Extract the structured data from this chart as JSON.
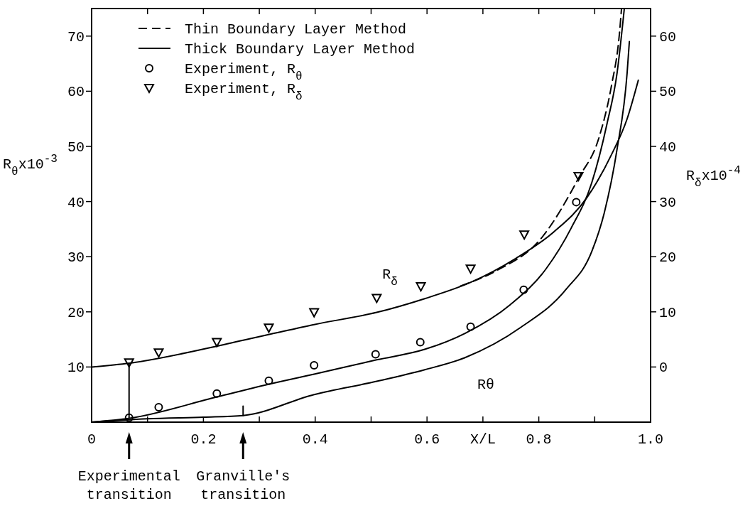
{
  "chart_data": {
    "type": "line",
    "xlabel": "X/L",
    "ylabel": "R$_{θ}$x10$^{-3}$",
    "y2label": "R$_{δ}$x10$^{-4}$",
    "xlim": [
      0,
      1
    ],
    "xticks": [
      0,
      {
        "value": 0.1,
        "label": null
      },
      0.2,
      {
        "value": 0.3,
        "label": null
      },
      0.4,
      {
        "value": 0.5,
        "label": null
      },
      0.6,
      {
        "value": 0.7,
        "label": null
      },
      0.8,
      {
        "value": 0.9,
        "label": null
      },
      {
        "value": 1,
        "label": "1.0"
      }
    ],
    "ylim": [
      0,
      75
    ],
    "yticks": [
      10,
      20,
      30,
      40,
      50,
      60,
      70
    ],
    "y2lim": [
      -10,
      65
    ],
    "y2ticks": [
      0,
      10,
      20,
      30,
      40,
      50,
      60
    ],
    "legend": "top left",
    "series": [
      {
        "name": "Thin Boundary Layer Method",
        "axis": "y2",
        "color": "#000000",
        "line_style": "dashed",
        "x": [
          0.66,
          0.723,
          0.804,
          0.872,
          0.908,
          0.93,
          0.944,
          0.948
        ],
        "values": [
          14.7,
          17.4,
          23.3,
          34.4,
          41.7,
          51.0,
          60.2,
          65
        ]
      },
      {
        "name": "Thick Boundary Layer Method",
        "axis": "y2",
        "color": "#000000",
        "line_style": "solid",
        "x": [
          0,
          0.068,
          0.225,
          0.322,
          0.398,
          0.51,
          0.596,
          0.677,
          0.759,
          0.827,
          0.886,
          0.93,
          0.958,
          0.978
        ],
        "values": [
          0,
          0.7,
          3.8,
          6.0,
          7.7,
          9.9,
          12.4,
          15.3,
          19.7,
          24.5,
          30.7,
          38.5,
          45,
          52
        ]
      },
      {
        "color": "#000000",
        "line_style": "solid",
        "x": [
          0,
          0.068,
          0.225,
          0.322,
          0.398,
          0.51,
          0.596,
          0.668,
          0.749,
          0.813,
          0.858,
          0.895,
          0.922,
          0.94,
          0.953
        ],
        "values": [
          0,
          0.7,
          4.6,
          7.0,
          8.7,
          11.3,
          13.2,
          16.1,
          21.3,
          27.8,
          35.2,
          43.5,
          54.1,
          63.3,
          75
        ]
      },
      {
        "color": "#000000",
        "line_style": "solid",
        "x": [
          0,
          0.1,
          0.2,
          0.271,
          0.398,
          0.51,
          0.596,
          0.668,
          0.768,
          0.849,
          0.895,
          0.917,
          0.94,
          0.958,
          0.962
        ],
        "values": [
          0,
          0.6,
          0.9,
          1.2,
          5.0,
          7.4,
          9.5,
          11.7,
          17.2,
          24.1,
          31.0,
          37.9,
          49.5,
          63.3,
          69
        ]
      },
      {
        "color": "#000000",
        "line_style": "solid",
        "x": [
          0.067,
          0.067
        ],
        "values": [
          0.8,
          10.7
        ]
      },
      {
        "color": "#000000",
        "line_style": "solid",
        "x": [
          0.271,
          0.271
        ],
        "values": [
          1.2,
          2.9
        ]
      },
      {
        "name": "Experiment, R$_{θ}$",
        "type": "scatter",
        "color": "#000000",
        "marker": "circle",
        "x": [
          0.067,
          0.12,
          0.224,
          0.317,
          0.398,
          0.508,
          0.588,
          0.678,
          0.773,
          0.867
        ],
        "values": [
          0.8,
          2.7,
          5.2,
          7.5,
          10.3,
          12.3,
          14.5,
          17.3,
          24.0,
          39.9
        ]
      },
      {
        "name": "Experiment, R$_{δ}$",
        "type": "scatter",
        "axis": "y2",
        "color": "#000000",
        "marker": "triangle",
        "x": [
          0.067,
          0.12,
          0.224,
          0.317,
          0.398,
          0.51,
          0.589,
          0.678,
          0.774,
          0.871
        ],
        "values": [
          0.8,
          2.6,
          4.5,
          7.1,
          9.9,
          12.5,
          14.6,
          17.8,
          24.0,
          34.6
        ]
      }
    ],
    "annotations": [
      "R$_{δ}$",
      "Rθ",
      "Experimental\ntransition",
      "Granville's\ntransition"
    ]
  }
}
